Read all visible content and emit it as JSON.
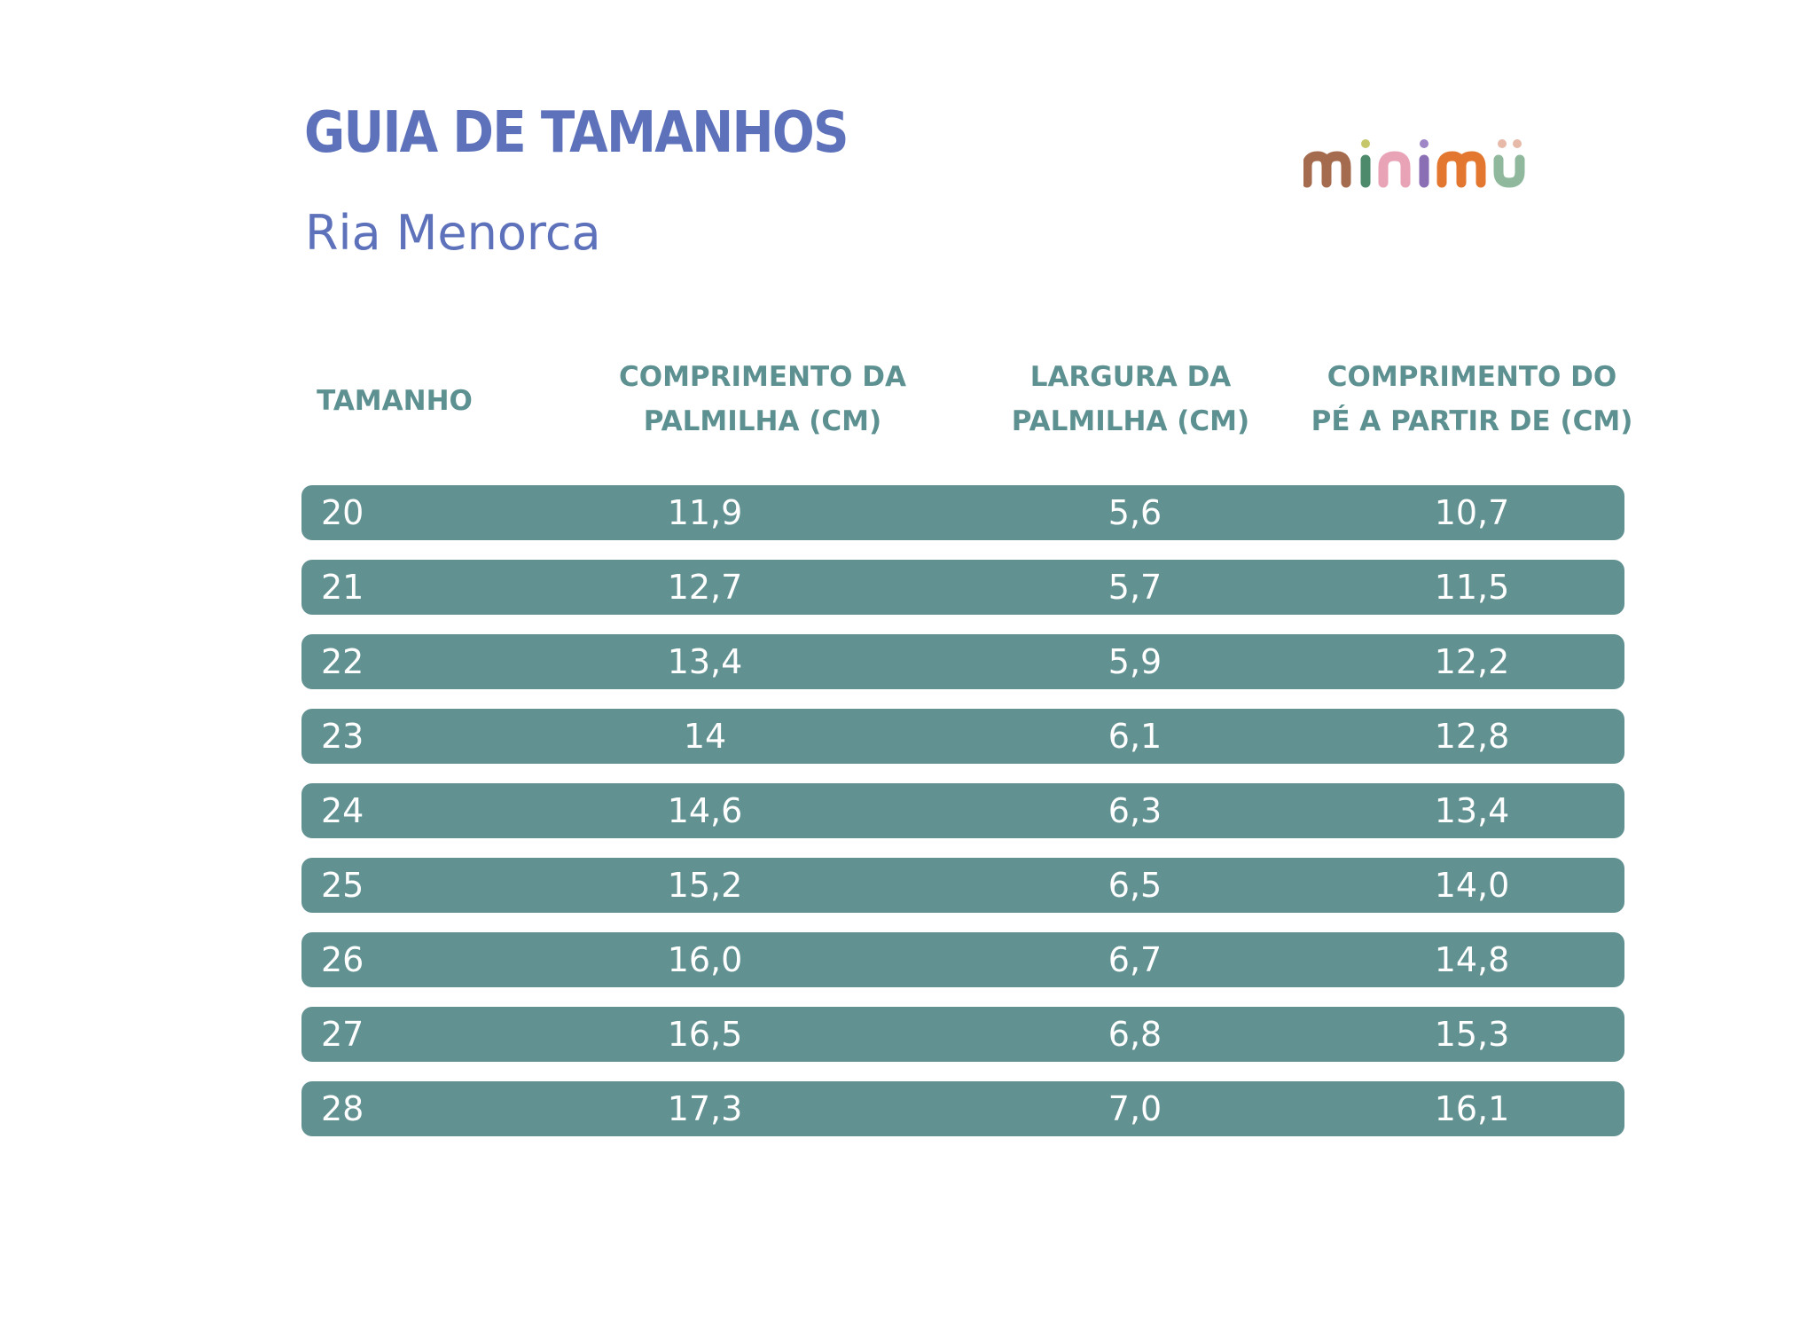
{
  "header": {
    "title": "GUIA DE TAMANHOS",
    "subtitle": "Ria Menorca",
    "logo_text": "minimü"
  },
  "colors": {
    "title": "#5e72bb",
    "header_text": "#5d9090",
    "row_background": "#619191",
    "row_text": "#ffffff"
  },
  "table": {
    "columns": [
      "TAMANHO",
      "COMPRIMENTO DA\nPALMILHA (CM)",
      "LARGURA DA\nPALMILHA (CM)",
      "COMPRIMENTO DO\nPÉ A PARTIR DE (CM)"
    ],
    "rows": [
      [
        "20",
        "11,9",
        "5,6",
        "10,7"
      ],
      [
        "21",
        "12,7",
        "5,7",
        "11,5"
      ],
      [
        "22",
        "13,4",
        "5,9",
        "12,2"
      ],
      [
        "23",
        "14",
        "6,1",
        "12,8"
      ],
      [
        "24",
        "14,6",
        "6,3",
        "13,4"
      ],
      [
        "25",
        "15,2",
        "6,5",
        "14,0"
      ],
      [
        "26",
        "16,0",
        "6,7",
        "14,8"
      ],
      [
        "27",
        "16,5",
        "6,8",
        "15,3"
      ],
      [
        "28",
        "17,3",
        "7,0",
        "16,1"
      ]
    ]
  }
}
